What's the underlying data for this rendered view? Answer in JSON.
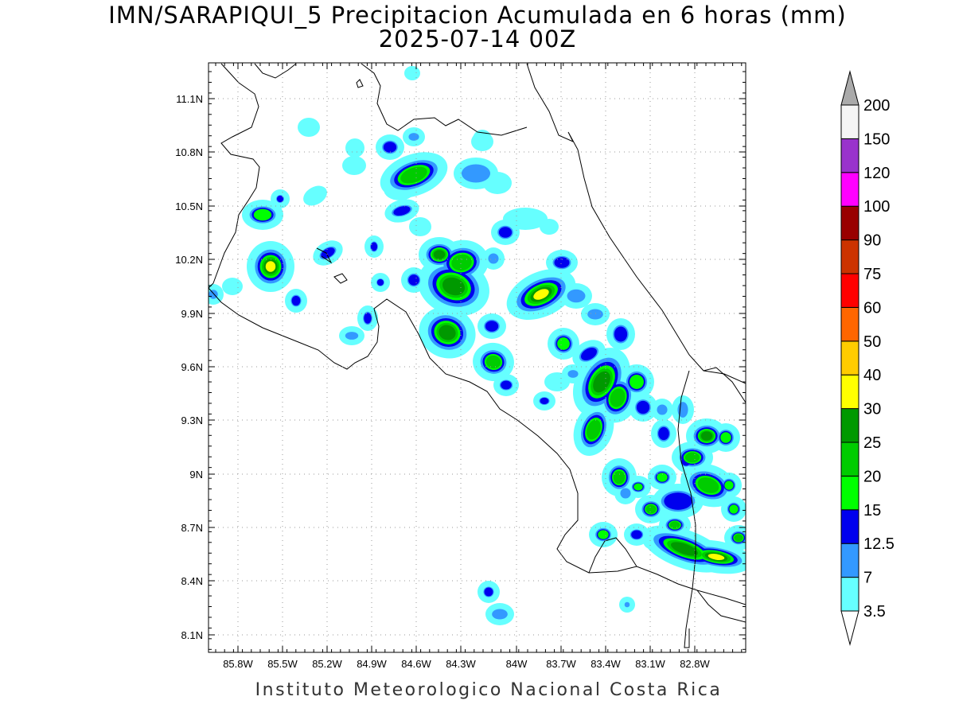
{
  "title": {
    "line1": "IMN/SARAPIQUI_5 Precipitacion Acumulada en 6 horas (mm)",
    "line2": "2025-07-14 00Z"
  },
  "footer": "Instituto Meteorologico Nacional Costa Rica",
  "axes": {
    "lon_ticks": [
      "85.8W",
      "85.5W",
      "85.2W",
      "84.9W",
      "84.6W",
      "84.3W",
      "84W",
      "83.7W",
      "83.4W",
      "83.1W",
      "82.8W"
    ],
    "lat_ticks": [
      "11.1N",
      "10.8N",
      "10.5N",
      "10.2N",
      "9.9N",
      "9.6N",
      "9.3N",
      "9N",
      "8.7N",
      "8.4N",
      "8.1N"
    ],
    "grid": true
  },
  "colorbar": {
    "labels": [
      "3.5",
      "7",
      "12.5",
      "15",
      "20",
      "25",
      "30",
      "40",
      "50",
      "60",
      "75",
      "90",
      "100",
      "120",
      "150",
      "200"
    ],
    "colors": [
      "#66ffff",
      "#3399ff",
      "#0000ee",
      "#00ff00",
      "#00cc00",
      "#009900",
      "#ffff00",
      "#ffcc00",
      "#ff6600",
      "#ff0000",
      "#cc3300",
      "#990000",
      "#ff00ff",
      "#9933cc",
      "#f5f5f5",
      "#aaaaaa"
    ]
  },
  "legend_colors": {
    "c1": "#66ffff",
    "c2": "#3399ff",
    "c3": "#0000ee",
    "c4": "#00ff00",
    "c5": "#00cc00",
    "c6": "#009900",
    "c7": "#ffff00",
    "c8": "#ffcc00",
    "c9": "#ff0000"
  }
}
